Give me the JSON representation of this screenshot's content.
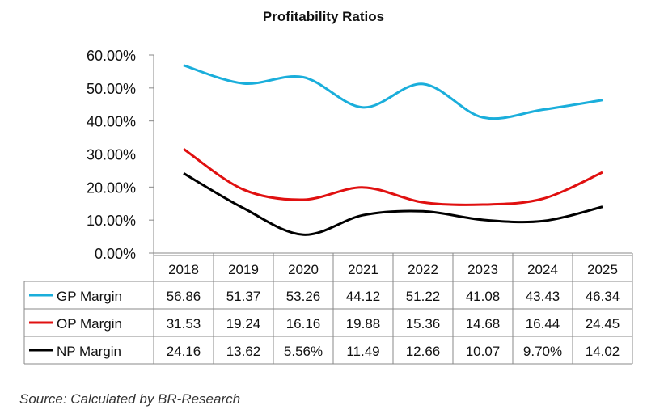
{
  "chart_data": {
    "type": "line",
    "title": "Profitability Ratios",
    "categories": [
      "2018",
      "2019",
      "2020",
      "2021",
      "2022",
      "2023",
      "2024",
      "2025"
    ],
    "ylim": [
      0,
      60
    ],
    "yticks": [
      "0.00%",
      "10.00%",
      "20.00%",
      "30.00%",
      "40.00%",
      "50.00%",
      "60.00%"
    ],
    "grid": false,
    "legend": "data-table",
    "series": [
      {
        "name": "GP Margin",
        "color": "#1aaedb",
        "values": [
          56.86,
          51.37,
          53.26,
          44.12,
          51.22,
          41.08,
          43.43,
          46.34
        ],
        "labels": [
          "56.86",
          "51.37",
          "53.26",
          "44.12",
          "51.22",
          "41.08",
          "43.43",
          "46.34"
        ]
      },
      {
        "name": "OP Margin",
        "color": "#e01010",
        "values": [
          31.53,
          19.24,
          16.16,
          19.88,
          15.36,
          14.68,
          16.44,
          24.45
        ],
        "labels": [
          "31.53",
          "19.24",
          "16.16",
          "19.88",
          "15.36",
          "14.68",
          "16.44",
          "24.45"
        ]
      },
      {
        "name": "NP Margin",
        "color": "#000000",
        "values": [
          24.16,
          13.62,
          5.56,
          11.49,
          12.66,
          10.07,
          9.7,
          14.02
        ],
        "labels": [
          "24.16",
          "13.62",
          "5.56%",
          "11.49",
          "12.66",
          "10.07",
          "9.70%",
          "14.02"
        ]
      }
    ]
  },
  "source": "Source: Calculated by BR-Research"
}
